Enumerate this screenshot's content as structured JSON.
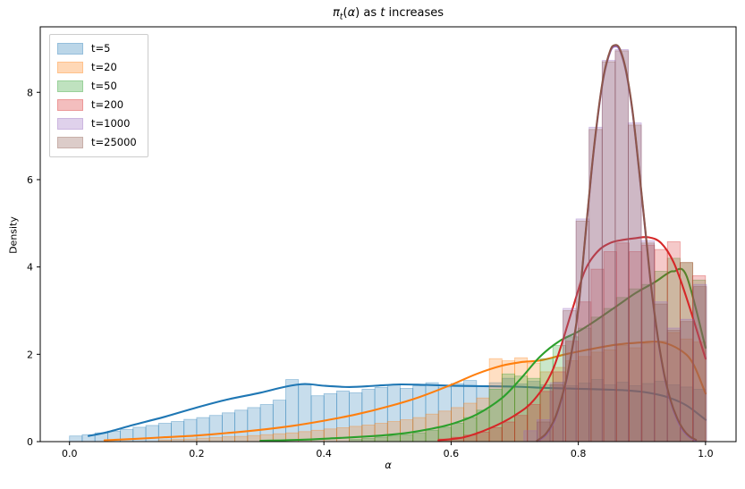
{
  "chart_data": {
    "type": "histogram+kde",
    "title": "πt(α) as t increases",
    "title_parts": [
      {
        "text": "π",
        "style": "italic"
      },
      {
        "text": "t",
        "style": "sub-italic"
      },
      {
        "text": "(",
        "style": "normal"
      },
      {
        "text": "α",
        "style": "italic"
      },
      {
        "text": ") as ",
        "style": "normal"
      },
      {
        "text": "t",
        "style": "italic"
      },
      {
        "text": " increases",
        "style": "normal"
      }
    ],
    "xlabel": "α",
    "ylabel": "Density",
    "axes": {
      "xlim": [
        -0.046,
        1.048
      ],
      "ylim": [
        0,
        9.5
      ],
      "x_ticks": [
        0.0,
        0.2,
        0.4,
        0.6,
        0.8,
        1.0
      ],
      "x_tick_labels": [
        "0.0",
        "0.2",
        "0.4",
        "0.6",
        "0.8",
        "1.0"
      ],
      "y_ticks": [
        0,
        2,
        4,
        6,
        8
      ],
      "y_tick_labels": [
        "0",
        "2",
        "4",
        "6",
        "8"
      ],
      "grid": false,
      "legend_position": "upper left"
    },
    "style": {
      "hist_fill_alpha": 0.25,
      "hist_edge_alpha": 0.4,
      "line_width": 2.1,
      "spine_color": "#000000",
      "background": "#ffffff"
    },
    "series": [
      {
        "label": "t=5",
        "color": "#1f77b4",
        "hist": {
          "bin_start": 0.0,
          "bin_width": 0.02,
          "heights": [
            0.13,
            0.16,
            0.2,
            0.24,
            0.28,
            0.33,
            0.37,
            0.42,
            0.46,
            0.51,
            0.55,
            0.6,
            0.66,
            0.72,
            0.78,
            0.85,
            0.95,
            1.42,
            1.3,
            1.05,
            1.1,
            1.16,
            1.12,
            1.2,
            1.24,
            1.3,
            1.22,
            1.28,
            1.35,
            1.25,
            1.33,
            1.4,
            1.28,
            1.35,
            1.45,
            1.32,
            1.38,
            1.3,
            1.36,
            1.28,
            1.34,
            1.42,
            1.3,
            1.36,
            1.28,
            1.33,
            1.38,
            1.3,
            1.25,
            1.2
          ]
        },
        "kde": {
          "x": [
            0.03,
            0.06,
            0.1,
            0.15,
            0.2,
            0.25,
            0.3,
            0.34,
            0.37,
            0.4,
            0.44,
            0.48,
            0.52,
            0.56,
            0.6,
            0.65,
            0.7,
            0.75,
            0.8,
            0.85,
            0.88,
            0.91,
            0.94,
            0.97,
            1.0
          ],
          "y": [
            0.13,
            0.22,
            0.38,
            0.57,
            0.78,
            0.97,
            1.12,
            1.26,
            1.32,
            1.28,
            1.25,
            1.28,
            1.31,
            1.3,
            1.28,
            1.27,
            1.26,
            1.23,
            1.21,
            1.19,
            1.17,
            1.12,
            1.02,
            0.83,
            0.5
          ]
        }
      },
      {
        "label": "t=20",
        "color": "#ff7f0e",
        "hist": {
          "bin_start": 0.14,
          "bin_width": 0.02,
          "heights": [
            0.04,
            0.05,
            0.06,
            0.08,
            0.09,
            0.11,
            0.12,
            0.14,
            0.16,
            0.18,
            0.2,
            0.23,
            0.26,
            0.29,
            0.32,
            0.35,
            0.38,
            0.42,
            0.46,
            0.5,
            0.55,
            0.63,
            0.7,
            0.78,
            0.88,
            1.0,
            1.9,
            1.85,
            1.92,
            1.8,
            1.6,
            1.7,
            1.85,
            1.95,
            2.05,
            2.1,
            2.2,
            2.15,
            2.25,
            2.3,
            2.5,
            2.35,
            2.28
          ]
        },
        "kde": {
          "x": [
            0.055,
            0.1,
            0.15,
            0.2,
            0.25,
            0.3,
            0.35,
            0.4,
            0.45,
            0.5,
            0.55,
            0.6,
            0.64,
            0.68,
            0.71,
            0.74,
            0.78,
            0.82,
            0.86,
            0.9,
            0.93,
            0.96,
            0.98,
            1.0
          ],
          "y": [
            0.03,
            0.06,
            0.1,
            0.14,
            0.2,
            0.27,
            0.36,
            0.48,
            0.62,
            0.8,
            1.02,
            1.3,
            1.55,
            1.74,
            1.82,
            1.86,
            2.0,
            2.12,
            2.22,
            2.27,
            2.28,
            2.1,
            1.8,
            1.1
          ]
        }
      },
      {
        "label": "t=50",
        "color": "#2ca02c",
        "hist": {
          "bin_start": 0.44,
          "bin_width": 0.02,
          "heights": [
            0.05,
            0.07,
            0.1,
            0.13,
            0.16,
            0.2,
            0.26,
            0.33,
            0.42,
            0.55,
            0.72,
            1.2,
            1.55,
            1.5,
            1.45,
            1.9,
            2.2,
            2.4,
            2.6,
            2.85,
            3.05,
            3.3,
            3.5,
            3.6,
            3.9,
            4.2,
            4.1,
            3.7
          ]
        },
        "kde": {
          "x": [
            0.3,
            0.36,
            0.42,
            0.48,
            0.52,
            0.56,
            0.6,
            0.64,
            0.68,
            0.71,
            0.74,
            0.77,
            0.8,
            0.83,
            0.86,
            0.89,
            0.92,
            0.94,
            0.95,
            0.97,
            1.0
          ],
          "y": [
            0.02,
            0.04,
            0.08,
            0.13,
            0.18,
            0.27,
            0.4,
            0.62,
            1.0,
            1.45,
            1.95,
            2.3,
            2.52,
            2.8,
            3.1,
            3.4,
            3.65,
            3.85,
            3.9,
            3.8,
            2.15
          ]
        }
      },
      {
        "label": "t=200",
        "color": "#d62728",
        "hist": {
          "bin_start": 0.58,
          "bin_width": 0.02,
          "heights": [
            0.06,
            0.1,
            0.15,
            0.22,
            0.32,
            0.45,
            0.6,
            0.85,
            1.15,
            1.6,
            2.3,
            3.2,
            3.95,
            4.35,
            4.55,
            4.35,
            4.5,
            4.4,
            4.58,
            4.1,
            3.8
          ]
        },
        "kde": {
          "x": [
            0.58,
            0.62,
            0.66,
            0.7,
            0.73,
            0.76,
            0.79,
            0.81,
            0.83,
            0.85,
            0.87,
            0.89,
            0.91,
            0.93,
            0.95,
            0.97,
            1.0
          ],
          "y": [
            0.03,
            0.1,
            0.3,
            0.6,
            0.95,
            1.65,
            3.0,
            3.9,
            4.35,
            4.55,
            4.62,
            4.66,
            4.68,
            4.55,
            4.1,
            3.3,
            1.9
          ]
        }
      },
      {
        "label": "t=1000",
        "color": "#9467bd",
        "hist": {
          "bin_start": 0.7145,
          "bin_width": 0.0205,
          "heights": [
            0.25,
            0.5,
            1.35,
            3.05,
            5.1,
            7.2,
            8.73,
            8.98,
            7.3,
            4.6,
            3.2,
            2.6,
            2.8,
            3.6
          ]
        },
        "kde": {
          "x": [
            0.735,
            0.75,
            0.765,
            0.78,
            0.79,
            0.8,
            0.81,
            0.82,
            0.83,
            0.84,
            0.85,
            0.857,
            0.865,
            0.875,
            0.885,
            0.895,
            0.905,
            0.915,
            0.925,
            0.935,
            0.945,
            0.955,
            0.965,
            0.975,
            0.985
          ],
          "y": [
            0.01,
            0.17,
            0.57,
            1.32,
            2.07,
            3.02,
            4.52,
            6.07,
            7.37,
            8.37,
            8.92,
            9.05,
            8.97,
            8.47,
            7.57,
            6.27,
            4.87,
            3.47,
            2.37,
            1.52,
            0.92,
            0.52,
            0.25,
            0.1,
            0.02
          ]
        }
      },
      {
        "label": "t=25000",
        "color": "#8c564b",
        "hist": {
          "bin_start": 0.735,
          "bin_width": 0.0205,
          "heights": [
            0.45,
            1.3,
            3.0,
            5.05,
            7.15,
            8.7,
            8.95,
            7.25,
            4.55,
            3.15,
            2.55,
            2.75,
            3.55
          ]
        },
        "kde": {
          "x": [
            0.735,
            0.75,
            0.765,
            0.78,
            0.79,
            0.8,
            0.81,
            0.82,
            0.83,
            0.84,
            0.85,
            0.857,
            0.865,
            0.875,
            0.885,
            0.895,
            0.905,
            0.915,
            0.925,
            0.935,
            0.945,
            0.955,
            0.965,
            0.975,
            0.985
          ],
          "y": [
            0.02,
            0.2,
            0.6,
            1.35,
            2.1,
            3.05,
            4.55,
            6.1,
            7.4,
            8.4,
            8.95,
            9.08,
            9.0,
            8.5,
            7.6,
            6.3,
            4.9,
            3.5,
            2.4,
            1.55,
            0.95,
            0.55,
            0.28,
            0.12,
            0.04
          ]
        }
      }
    ]
  }
}
